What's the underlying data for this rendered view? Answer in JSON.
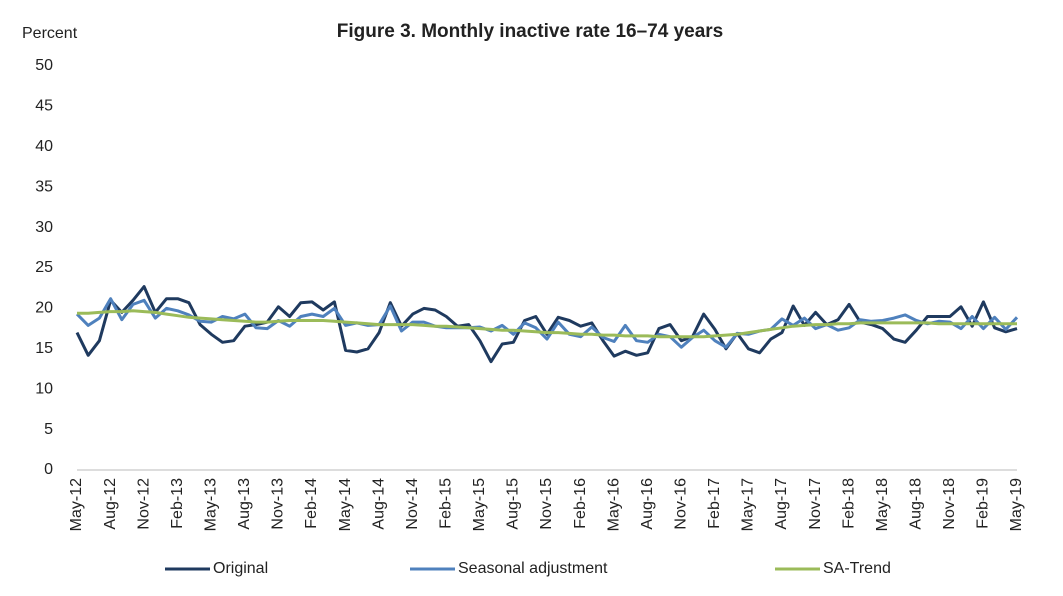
{
  "chart_data": {
    "type": "line",
    "title": "Figure 3. Monthly inactive rate 16–74 years",
    "y_label": "Percent",
    "categories": [
      "May-12",
      null,
      null,
      "Aug-12",
      null,
      null,
      "Nov-12",
      null,
      null,
      "Feb-13",
      null,
      null,
      "May-13",
      null,
      null,
      "Aug-13",
      null,
      null,
      "Nov-13",
      null,
      null,
      "Feb-14",
      null,
      null,
      "May-14",
      null,
      null,
      "Aug-14",
      null,
      null,
      "Nov-14",
      null,
      null,
      "Feb-15",
      null,
      null,
      "May-15",
      null,
      null,
      "Aug-15",
      null,
      null,
      "Nov-15",
      null,
      null,
      "Feb-16",
      null,
      null,
      "May-16",
      null,
      null,
      "Aug-16",
      null,
      null,
      "Nov-16",
      null,
      null,
      "Feb-17",
      null,
      null,
      "May-17",
      null,
      null,
      "Aug-17",
      null,
      null,
      "Nov-17",
      null,
      null,
      "Feb-18",
      null,
      null,
      "May-18",
      null,
      null,
      "Aug-18",
      null,
      null,
      "Nov-18",
      null,
      null,
      "Feb-19",
      null,
      null,
      "May-19"
    ],
    "series": [
      {
        "name": "Original",
        "color": "#1f3a5f",
        "values": [
          17,
          14.2,
          16,
          21,
          19.5,
          21,
          22.7,
          19.5,
          21.2,
          21.2,
          20.7,
          18,
          16.8,
          15.8,
          16,
          17.8,
          18,
          18.3,
          20.2,
          19,
          20.7,
          20.8,
          19.8,
          20.8,
          14.8,
          14.6,
          15,
          17,
          20.7,
          17.8,
          19.3,
          20,
          19.8,
          19,
          17.8,
          18,
          16,
          13.4,
          15.6,
          15.8,
          18.5,
          19,
          16.8,
          18.9,
          18.5,
          17.8,
          18.2,
          16,
          14.1,
          14.7,
          14.2,
          14.5,
          17.5,
          18,
          16,
          16.5,
          19.3,
          17.4,
          15,
          16.9,
          15,
          14.5,
          16.2,
          17,
          20.3,
          17.9,
          19.5,
          18,
          18.6,
          20.5,
          18.3,
          18,
          17.5,
          16.2,
          15.8,
          17.3,
          19,
          19,
          19,
          20.2,
          17.8,
          20.8,
          17.6,
          17.1,
          17.5
        ]
      },
      {
        "name": "Seasonal adjustment",
        "color": "#4f81bd",
        "values": [
          19.3,
          17.9,
          18.8,
          21.2,
          18.6,
          20.5,
          21,
          18.8,
          20,
          19.7,
          19.2,
          18.4,
          18.3,
          19,
          18.7,
          19.3,
          17.6,
          17.5,
          18.5,
          17.8,
          19,
          19.3,
          19,
          20,
          17.9,
          18.2,
          17.9,
          18,
          20.3,
          17.2,
          18.3,
          18.3,
          17.8,
          17.6,
          17.6,
          17.6,
          17.7,
          17.2,
          17.9,
          16.8,
          18.2,
          17.6,
          16.2,
          18.3,
          16.8,
          16.5,
          17.7,
          16.4,
          15.9,
          17.9,
          16,
          15.8,
          16.8,
          16.5,
          15.2,
          16.4,
          17.3,
          16,
          15.2,
          16.9,
          16.8,
          17.2,
          17.4,
          18.7,
          17.9,
          18.8,
          17.5,
          18,
          17.3,
          17.6,
          18.6,
          18.4,
          18.5,
          18.8,
          19.2,
          18.5,
          18.1,
          18.4,
          18.3,
          17.5,
          19,
          17.5,
          18.9,
          17.4,
          18.9
        ]
      },
      {
        "name": "SA-Trend",
        "color": "#9bbb59",
        "values": [
          19.4,
          19.4,
          19.5,
          19.6,
          19.6,
          19.7,
          19.6,
          19.5,
          19.3,
          19.1,
          18.9,
          18.8,
          18.7,
          18.6,
          18.5,
          18.4,
          18.3,
          18.3,
          18.4,
          18.5,
          18.5,
          18.5,
          18.5,
          18.4,
          18.3,
          18.2,
          18.1,
          18,
          18,
          18,
          18,
          17.9,
          17.8,
          17.8,
          17.7,
          17.6,
          17.5,
          17.4,
          17.3,
          17.3,
          17.2,
          17.1,
          17,
          17,
          16.9,
          16.8,
          16.8,
          16.7,
          16.7,
          16.6,
          16.6,
          16.6,
          16.5,
          16.5,
          16.5,
          16.5,
          16.5,
          16.6,
          16.7,
          16.8,
          17,
          17.2,
          17.4,
          17.6,
          17.8,
          17.9,
          18,
          18,
          18.1,
          18.1,
          18.2,
          18.2,
          18.2,
          18.2,
          18.2,
          18.2,
          18.2,
          18.1,
          18.1,
          18.1,
          18.1,
          18.1,
          18.1,
          18.1,
          18.1
        ]
      }
    ],
    "ylim": [
      0,
      50
    ],
    "yticks": [
      0,
      5,
      10,
      15,
      20,
      25,
      30,
      35,
      40,
      45,
      50
    ],
    "grid": false,
    "legend": "bottom"
  }
}
